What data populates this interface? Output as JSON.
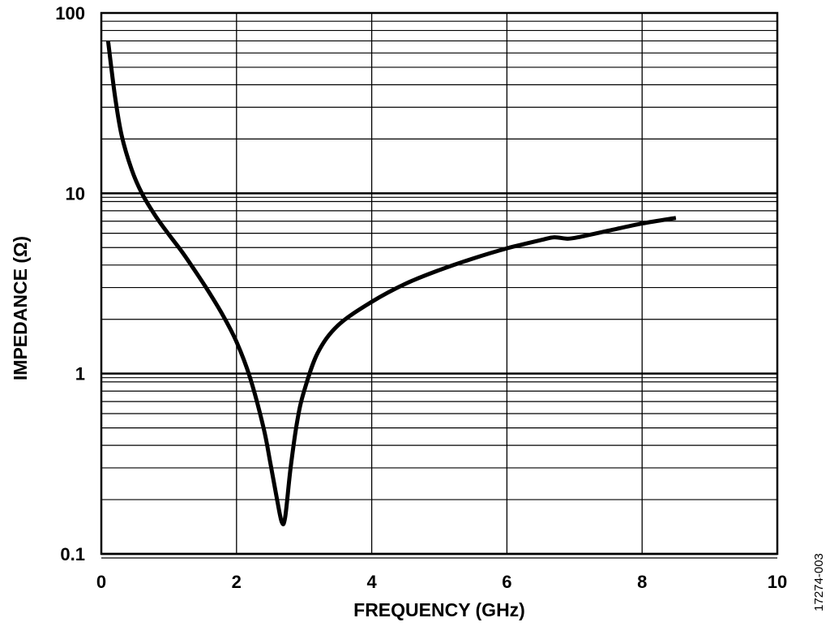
{
  "figure_id": "17274-003",
  "chart_data": {
    "type": "line",
    "title": "",
    "xlabel": "FREQUENCY (GHz)",
    "ylabel": "IMPEDANCE (Ω)",
    "xlim": [
      0,
      10
    ],
    "ylim": [
      0.1,
      100
    ],
    "y_scale": "log",
    "grid": true,
    "x_ticks": [
      0,
      2,
      4,
      6,
      8,
      10
    ],
    "x_tick_labels": [
      "0",
      "2",
      "4",
      "6",
      "8",
      "10"
    ],
    "y_ticks": [
      0.1,
      1,
      10,
      100
    ],
    "y_tick_labels": [
      "0.1",
      "1",
      "10",
      "100"
    ],
    "line_color": "#000000",
    "series": [
      {
        "x": [
          0.1,
          0.2,
          0.3,
          0.45,
          0.6,
          0.8,
          1.0,
          1.2,
          1.4,
          1.6,
          1.8,
          2.0,
          2.2,
          2.4,
          2.5,
          2.6,
          2.67,
          2.72,
          2.8,
          2.9,
          3.0,
          3.2,
          3.5,
          4.0,
          4.5,
          5.0,
          5.5,
          6.0,
          6.5,
          6.7,
          6.9,
          7.1,
          7.5,
          8.0,
          8.5
        ],
        "y": [
          70,
          35,
          21,
          13.5,
          10,
          7.5,
          5.9,
          4.7,
          3.65,
          2.8,
          2.1,
          1.5,
          0.95,
          0.5,
          0.32,
          0.2,
          0.15,
          0.16,
          0.3,
          0.55,
          0.8,
          1.3,
          1.85,
          2.5,
          3.15,
          3.75,
          4.35,
          4.95,
          5.5,
          5.7,
          5.6,
          5.75,
          6.2,
          6.8,
          7.3
        ]
      }
    ]
  }
}
